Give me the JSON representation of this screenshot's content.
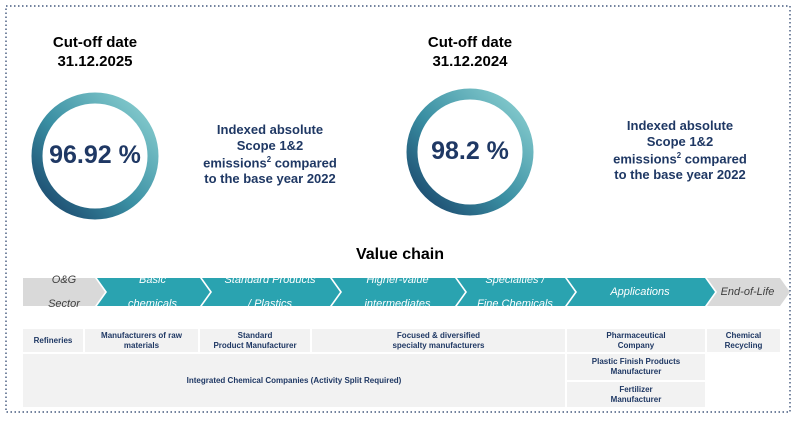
{
  "metrics": [
    {
      "title": [
        "Cut-off date",
        "31.12.2025"
      ],
      "value": "96.92 %",
      "description": [
        "Indexed absolute",
        "Scope 1&2",
        {
          "text": "emissions",
          "sup": "2",
          "after": "compared"
        },
        "to the base year 2022"
      ]
    },
    {
      "title": [
        "Cut-off date",
        "31.12.2024"
      ],
      "value": "98.2 %",
      "description": [
        "Indexed absolute",
        "Scope 1&2",
        {
          "text": "emissions",
          "sup": "2",
          "after": "compared"
        },
        "to the base year 2022"
      ]
    }
  ],
  "value_chain": {
    "title": "Value chain",
    "stages": [
      [
        "O&G",
        "Sector"
      ],
      [
        "Basic",
        "chemicals"
      ],
      [
        "Standard Products",
        "/ Plastics"
      ],
      [
        "Higher-value",
        "intermediates"
      ],
      [
        "Specialties /",
        "Fine Chemicals"
      ],
      [
        "Applications"
      ],
      [
        "End-of-Life"
      ]
    ],
    "boxes": [
      [
        "Refineries"
      ],
      [
        "Manufacturers of raw",
        "materials"
      ],
      [
        "Standard",
        "Product Manufacturer"
      ],
      [
        "Focused & diversified",
        "specialty manufacturers"
      ],
      [
        "Pharmaceutical",
        "Company"
      ],
      [
        "Chemical",
        "Recycling"
      ],
      [
        "Integrated Chemical Companies (Activity Split Required)"
      ],
      [
        "Plastic Finish Products",
        "Manufacturer"
      ],
      [
        "Fertilizer",
        "Manufacturer"
      ]
    ]
  }
}
